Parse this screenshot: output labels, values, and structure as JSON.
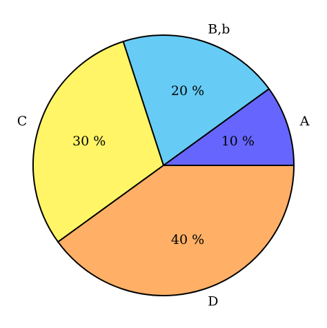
{
  "chart_data": {
    "type": "pie",
    "start_angle_deg": 0,
    "direction": "counterclockwise",
    "slices": [
      {
        "label": "A",
        "value": 10,
        "pct_label": "10 %",
        "color": "#6666ff"
      },
      {
        "label": "B,b",
        "value": 20,
        "pct_label": "20 %",
        "color": "#66ccf5"
      },
      {
        "label": "C",
        "value": 30,
        "pct_label": "30 %",
        "color": "#fff566"
      },
      {
        "label": "D",
        "value": 40,
        "pct_label": "40 %",
        "color": "#ffb066"
      }
    ]
  }
}
